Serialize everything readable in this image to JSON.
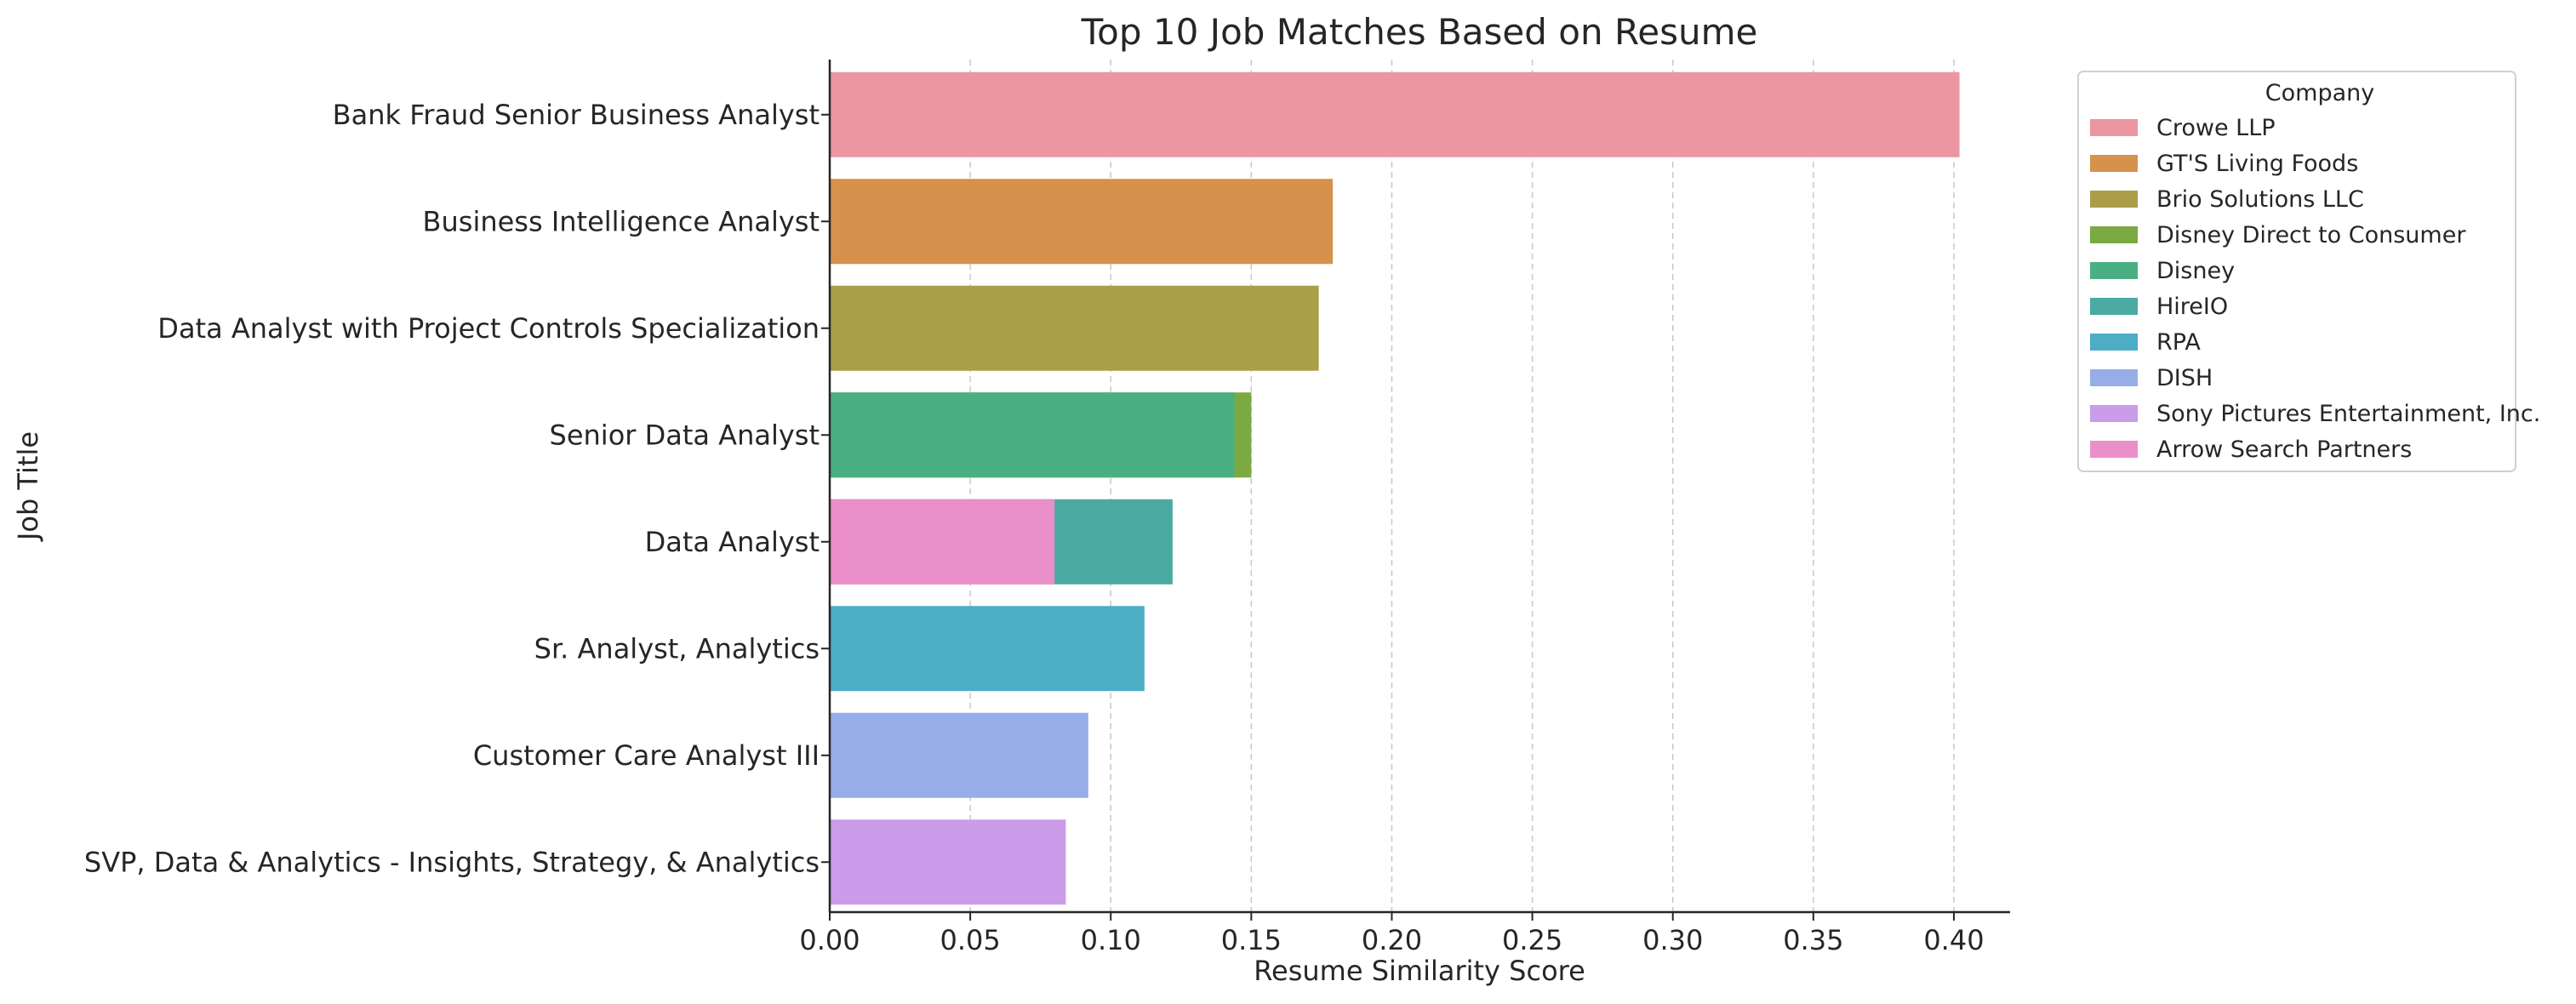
{
  "chart_data": {
    "type": "bar",
    "orientation": "horizontal",
    "stacking": "overlay",
    "title": "Top 10 Job Matches Based on Resume",
    "xlabel": "Resume Similarity Score",
    "ylabel": "Job Title",
    "xlim": [
      0,
      0.42
    ],
    "x_ticks": [
      "0.00",
      "0.05",
      "0.10",
      "0.15",
      "0.20",
      "0.25",
      "0.30",
      "0.35",
      "0.40"
    ],
    "grid": "x-axis dashed",
    "categories": [
      "Bank Fraud Senior Business Analyst",
      "Business Intelligence Analyst",
      "Data Analyst with Project Controls Specialization",
      "Senior Data Analyst",
      "Data Analyst",
      "Sr. Analyst, Analytics",
      "Customer Care Analyst III",
      "SVP, Data & Analytics - Insights, Strategy, & Analytics"
    ],
    "series": [
      {
        "name": "Crowe LLP",
        "color": "#EB96A1",
        "values": [
          0.402,
          null,
          null,
          null,
          null,
          null,
          null,
          null
        ]
      },
      {
        "name": "GT'S Living Foods",
        "color": "#D6914C",
        "values": [
          null,
          0.179,
          null,
          null,
          null,
          null,
          null,
          null
        ]
      },
      {
        "name": "Brio Solutions LLC",
        "color": "#AA9E48",
        "values": [
          null,
          null,
          0.174,
          null,
          null,
          null,
          null,
          null
        ]
      },
      {
        "name": "Disney Direct to Consumer",
        "color": "#7BA942",
        "values": [
          null,
          null,
          null,
          0.15,
          null,
          null,
          null,
          null
        ]
      },
      {
        "name": "Disney",
        "color": "#4AAF82",
        "values": [
          null,
          null,
          null,
          0.144,
          null,
          null,
          null,
          null
        ]
      },
      {
        "name": "HireIO",
        "color": "#4BAAA1",
        "values": [
          null,
          null,
          null,
          null,
          0.122,
          null,
          null,
          null
        ]
      },
      {
        "name": "RPA",
        "color": "#4DADC4",
        "values": [
          null,
          null,
          null,
          null,
          null,
          0.112,
          null,
          null
        ]
      },
      {
        "name": "DISH",
        "color": "#96ADE8",
        "values": [
          null,
          null,
          null,
          null,
          null,
          null,
          0.092,
          null
        ]
      },
      {
        "name": "Sony Pictures Entertainment, Inc.",
        "color": "#CB9CE9",
        "values": [
          null,
          null,
          null,
          null,
          null,
          null,
          null,
          0.084
        ]
      },
      {
        "name": "Arrow Search Partners",
        "color": "#EA8FCA",
        "values": [
          null,
          null,
          null,
          null,
          0.08,
          null,
          null,
          null
        ]
      }
    ],
    "legend": {
      "title": "Company",
      "placement": "outside top-right"
    }
  }
}
